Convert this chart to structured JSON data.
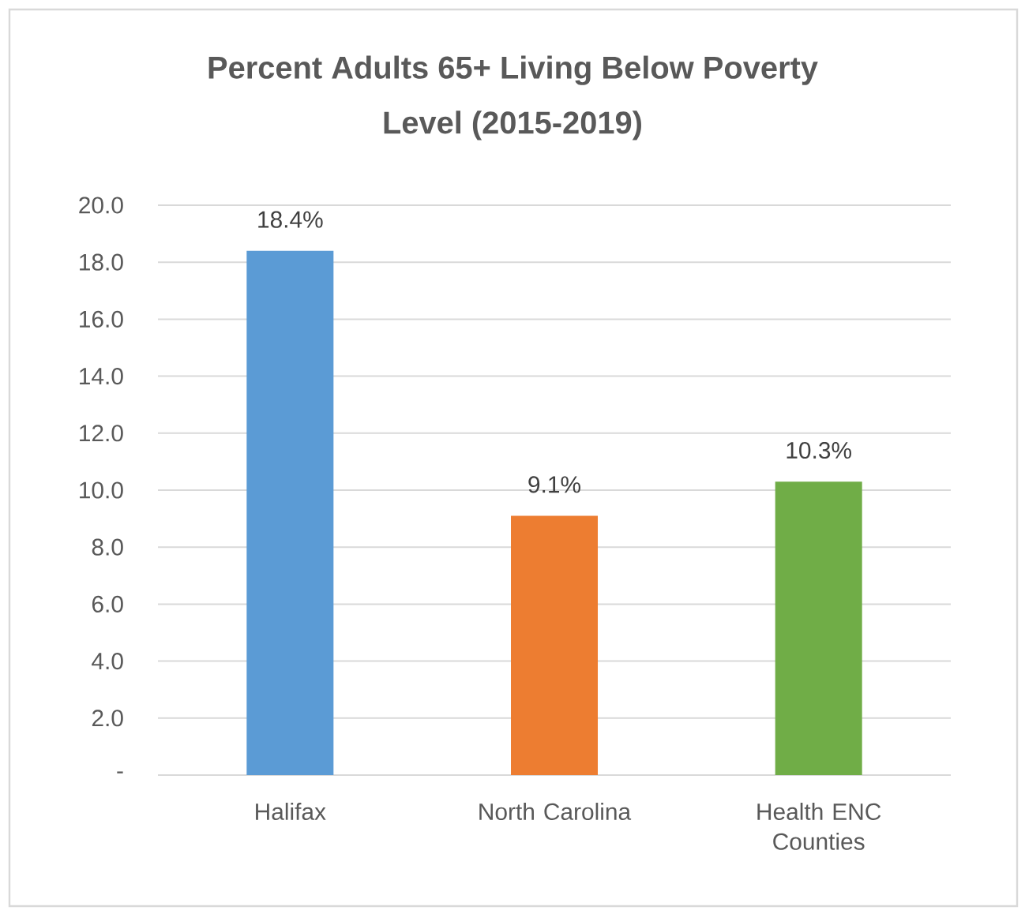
{
  "chart_data": {
    "type": "bar",
    "title": "Percent Adults 65+ Living Below Poverty Level (2015-2019)",
    "categories": [
      "Halifax",
      "North Carolina",
      "Health ENC Counties"
    ],
    "values": [
      18.4,
      9.1,
      10.3
    ],
    "colors": [
      "#5b9bd5",
      "#ed7d31",
      "#70ad47"
    ],
    "value_labels": [
      "18.4%",
      "9.1%",
      "10.3%"
    ],
    "ylim": [
      0,
      20
    ],
    "yticks": [
      {
        "value": 0,
        "label": "-"
      },
      {
        "value": 2,
        "label": "2.0"
      },
      {
        "value": 4,
        "label": "4.0"
      },
      {
        "value": 6,
        "label": "6.0"
      },
      {
        "value": 8,
        "label": "8.0"
      },
      {
        "value": 10,
        "label": "10.0"
      },
      {
        "value": 12,
        "label": "12.0"
      },
      {
        "value": 14,
        "label": "14.0"
      },
      {
        "value": 16,
        "label": "16.0"
      },
      {
        "value": 18,
        "label": "18.0"
      },
      {
        "value": 20,
        "label": "20.0"
      }
    ],
    "grid": "y"
  }
}
